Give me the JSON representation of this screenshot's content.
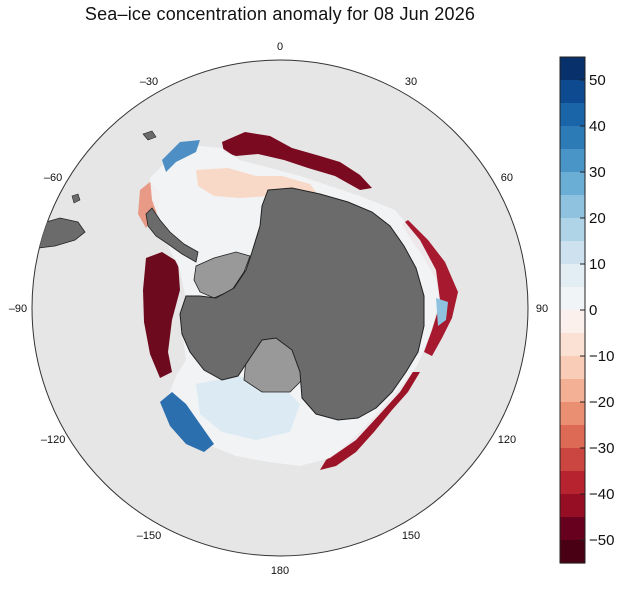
{
  "title": "Sea–ice concentration anomaly for 08 Jun 2026",
  "map": {
    "projection": "south-polar-stereographic",
    "longitude_labels": [
      {
        "lon": 0,
        "text": "0"
      },
      {
        "lon": 30,
        "text": "30"
      },
      {
        "lon": 60,
        "text": "60"
      },
      {
        "lon": 90,
        "text": "90"
      },
      {
        "lon": 120,
        "text": "120"
      },
      {
        "lon": 150,
        "text": "150"
      },
      {
        "lon": 180,
        "text": "180"
      },
      {
        "lon": -150,
        "text": "–150"
      },
      {
        "lon": -120,
        "text": "–120"
      },
      {
        "lon": -90,
        "text": "–90"
      },
      {
        "lon": -60,
        "text": "–60"
      },
      {
        "lon": -30,
        "text": "–30"
      }
    ],
    "colors": {
      "ocean": "#e6e6e6",
      "land": "#6b6b6b",
      "ice_shelf": "#999999",
      "outline": "#222222"
    }
  },
  "colorbar": {
    "min": -55,
    "max": 55,
    "tick_values": [
      50,
      40,
      30,
      20,
      10,
      0,
      -10,
      -20,
      -30,
      -40,
      -50
    ],
    "tick_labels": [
      "50",
      "40",
      "30",
      "20",
      "10",
      "0",
      "−10",
      "−20",
      "−30",
      "−40",
      "−50"
    ],
    "colors_top_to_bottom": [
      "#08306b",
      "#0d4a8f",
      "#1a64a8",
      "#2c7bb6",
      "#4a95c7",
      "#6aadd5",
      "#8fc2de",
      "#b0d4e7",
      "#cde2ee",
      "#e2edf4",
      "#f1f4f7",
      "#fbf0eb",
      "#fbe1d4",
      "#f8ccb6",
      "#f3b095",
      "#ea8f72",
      "#dd6a55",
      "#cb4640",
      "#b7232f",
      "#960e24",
      "#67001f",
      "#4a0014"
    ]
  }
}
